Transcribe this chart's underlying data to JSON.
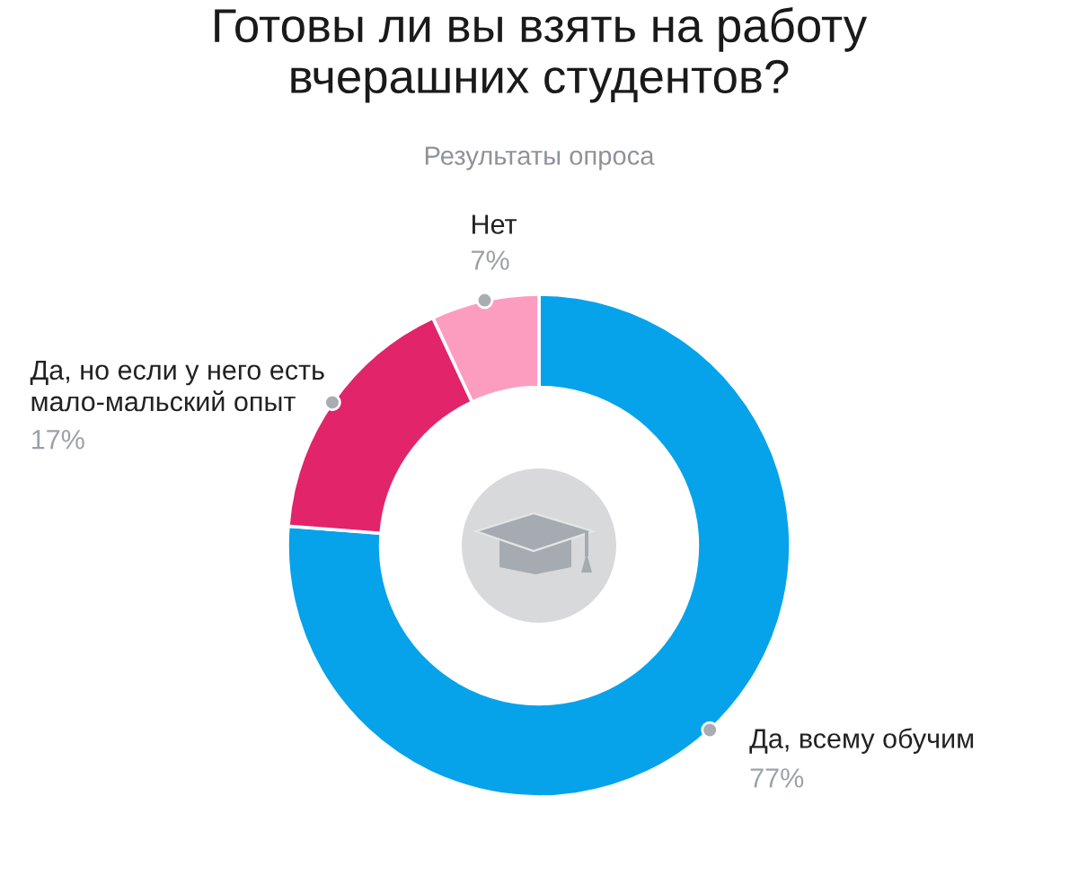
{
  "chart_data": {
    "type": "donut",
    "title": "Готовы ли вы взять на работу\nвчерашних студентов?",
    "subtitle": "Результаты опроса",
    "categories": [
      "Да, всему обучим",
      "Да, но если у него есть\nмало-мальский опыт",
      "Нет"
    ],
    "values": [
      77,
      17,
      7
    ],
    "value_labels": [
      "77%",
      "17%",
      "7%"
    ],
    "colors": [
      "#06a3ea",
      "#e2246b",
      "#fc9dc0"
    ]
  }
}
